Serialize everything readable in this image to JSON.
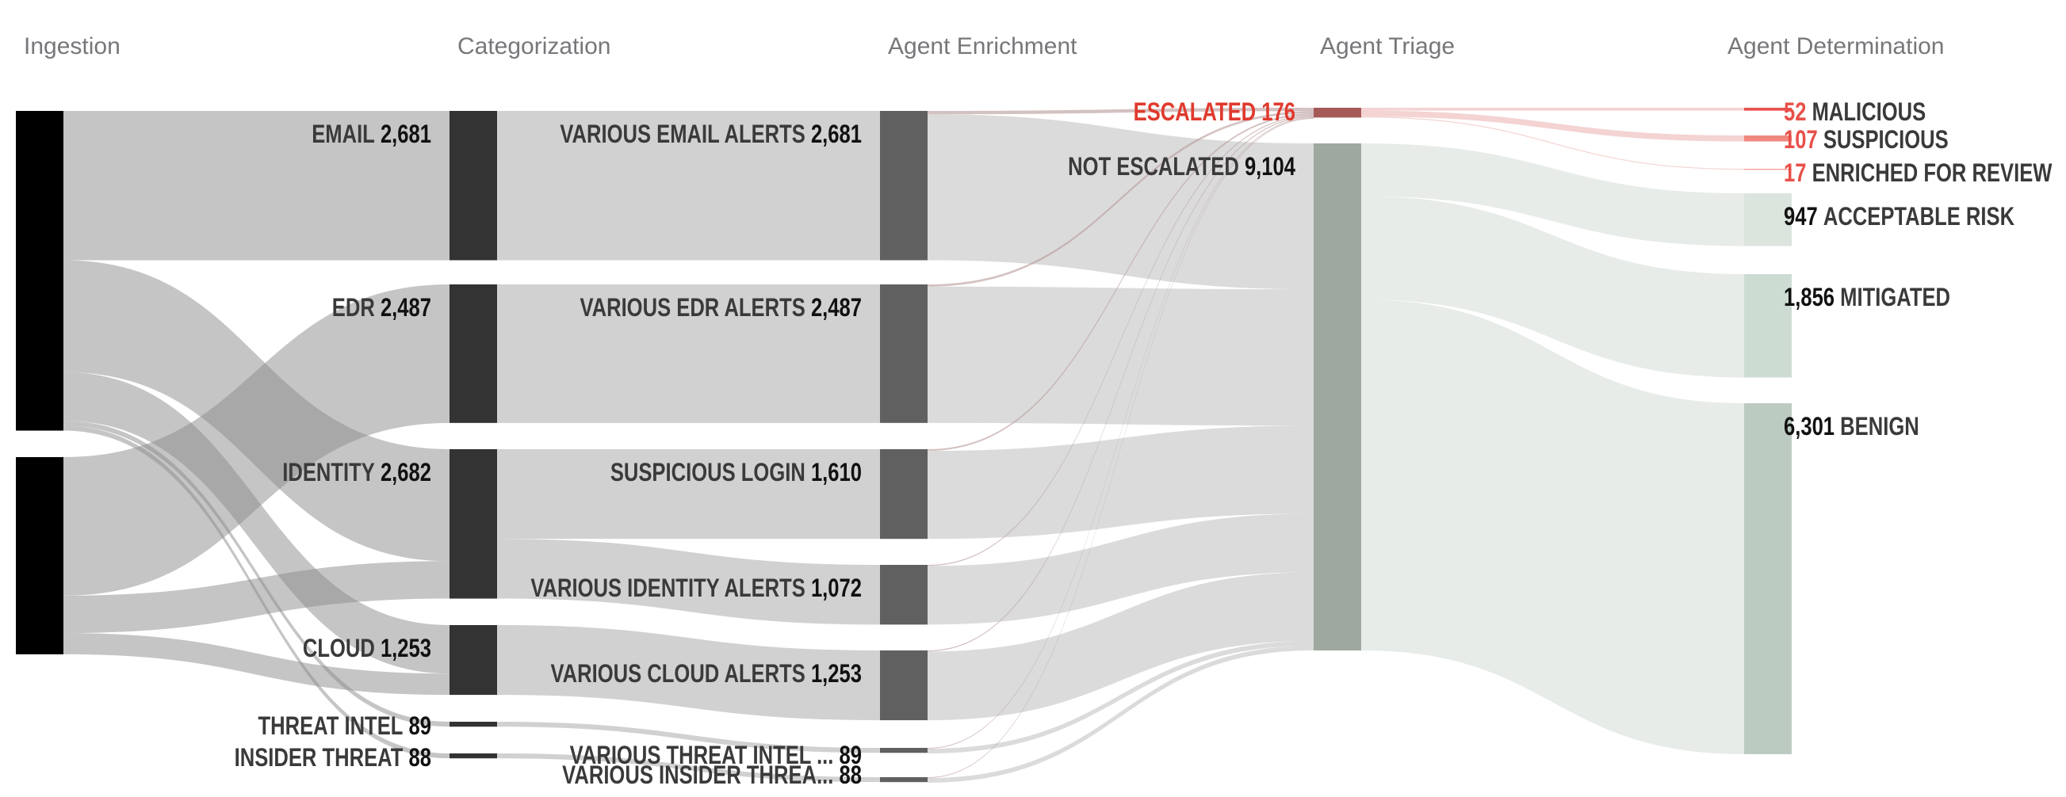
{
  "chart_data": {
    "type": "sankey",
    "columns": [
      "Ingestion",
      "Categorization",
      "Agent Enrichment",
      "Agent Triage",
      "Agent Determination"
    ],
    "nodes": [
      {
        "id": "src_a",
        "column": 0,
        "label": "",
        "value": 5740,
        "color": "#000000"
      },
      {
        "id": "src_b",
        "column": 0,
        "label": "",
        "value": 3540,
        "color": "#000000"
      },
      {
        "id": "email",
        "column": 1,
        "label": "EMAIL",
        "value": 2681,
        "color": "#333333"
      },
      {
        "id": "edr",
        "column": 1,
        "label": "EDR",
        "value": 2487,
        "color": "#333333"
      },
      {
        "id": "identity",
        "column": 1,
        "label": "IDENTITY",
        "value": 2682,
        "color": "#333333"
      },
      {
        "id": "cloud",
        "column": 1,
        "label": "CLOUD",
        "value": 1253,
        "color": "#333333"
      },
      {
        "id": "ti",
        "column": 1,
        "label": "THREAT INTEL",
        "value": 89,
        "color": "#333333"
      },
      {
        "id": "it",
        "column": 1,
        "label": "INSIDER THREAT",
        "value": 88,
        "color": "#333333"
      },
      {
        "id": "v_email",
        "column": 2,
        "label": "VARIOUS EMAIL ALERTS",
        "value": 2681,
        "color": "#606060"
      },
      {
        "id": "v_edr",
        "column": 2,
        "label": "VARIOUS EDR ALERTS",
        "value": 2487,
        "color": "#606060"
      },
      {
        "id": "login",
        "column": 2,
        "label": "SUSPICIOUS LOGIN",
        "value": 1610,
        "color": "#606060"
      },
      {
        "id": "v_identity",
        "column": 2,
        "label": "VARIOUS IDENTITY ALERTS",
        "value": 1072,
        "color": "#606060"
      },
      {
        "id": "v_cloud",
        "column": 2,
        "label": "VARIOUS CLOUD ALERTS",
        "value": 1253,
        "color": "#606060"
      },
      {
        "id": "v_ti",
        "column": 2,
        "label": "VARIOUS THREAT INTEL ...",
        "value": 89,
        "color": "#606060"
      },
      {
        "id": "v_it",
        "column": 2,
        "label": "VARIOUS INSIDER THREA...",
        "value": 88,
        "color": "#606060"
      },
      {
        "id": "escalated",
        "column": 3,
        "label": "ESCALATED",
        "value": 176,
        "color": "#a55a58",
        "text_color": "#e03a2e"
      },
      {
        "id": "not_escalated",
        "column": 3,
        "label": "NOT ESCALATED",
        "value": 9104,
        "color": "#9fa89f"
      },
      {
        "id": "malicious",
        "column": 4,
        "label": "MALICIOUS",
        "value": 52,
        "color": "#e8504a",
        "value_color": "#e8504a"
      },
      {
        "id": "suspicious",
        "column": 4,
        "label": "SUSPICIOUS",
        "value": 107,
        "color": "#f08880",
        "value_color": "#e8504a"
      },
      {
        "id": "enriched",
        "column": 4,
        "label": "ENRICHED FOR REVIEW",
        "value": 17,
        "color": "#f4a8a0",
        "value_color": "#e8504a"
      },
      {
        "id": "acceptable",
        "column": 4,
        "label": "ACCEPTABLE RISK",
        "value": 947,
        "color": "#dce4de"
      },
      {
        "id": "mitigated",
        "column": 4,
        "label": "MITIGATED",
        "value": 1856,
        "color": "#cddcd3"
      },
      {
        "id": "benign",
        "column": 4,
        "label": "BENIGN",
        "value": 6301,
        "color": "#bccbc2"
      }
    ],
    "links": [
      {
        "source": "src_a",
        "target": "email",
        "value": 2681
      },
      {
        "source": "src_a",
        "target": "identity",
        "value": 2010
      },
      {
        "source": "src_a",
        "target": "cloud",
        "value": 872
      },
      {
        "source": "src_a",
        "target": "ti",
        "value": 89
      },
      {
        "source": "src_a",
        "target": "it",
        "value": 88
      },
      {
        "source": "src_b",
        "target": "edr",
        "value": 2487
      },
      {
        "source": "src_b",
        "target": "identity",
        "value": 672
      },
      {
        "source": "src_b",
        "target": "cloud",
        "value": 381
      },
      {
        "source": "email",
        "target": "v_email",
        "value": 2681
      },
      {
        "source": "edr",
        "target": "v_edr",
        "value": 2487
      },
      {
        "source": "identity",
        "target": "login",
        "value": 1610
      },
      {
        "source": "identity",
        "target": "v_identity",
        "value": 1072
      },
      {
        "source": "cloud",
        "target": "v_cloud",
        "value": 1253
      },
      {
        "source": "ti",
        "target": "v_ti",
        "value": 89
      },
      {
        "source": "it",
        "target": "v_it",
        "value": 88
      },
      {
        "source": "v_email",
        "target": "escalated",
        "value": 60
      },
      {
        "source": "v_email",
        "target": "not_escalated",
        "value": 2621
      },
      {
        "source": "v_edr",
        "target": "escalated",
        "value": 40
      },
      {
        "source": "v_edr",
        "target": "not_escalated",
        "value": 2447
      },
      {
        "source": "login",
        "target": "escalated",
        "value": 30
      },
      {
        "source": "login",
        "target": "not_escalated",
        "value": 1580
      },
      {
        "source": "v_identity",
        "target": "escalated",
        "value": 20
      },
      {
        "source": "v_identity",
        "target": "not_escalated",
        "value": 1052
      },
      {
        "source": "v_cloud",
        "target": "escalated",
        "value": 20
      },
      {
        "source": "v_cloud",
        "target": "not_escalated",
        "value": 1233
      },
      {
        "source": "v_ti",
        "target": "escalated",
        "value": 3
      },
      {
        "source": "v_ti",
        "target": "not_escalated",
        "value": 86
      },
      {
        "source": "v_it",
        "target": "escalated",
        "value": 3
      },
      {
        "source": "v_it",
        "target": "not_escalated",
        "value": 85
      },
      {
        "source": "escalated",
        "target": "malicious",
        "value": 52
      },
      {
        "source": "escalated",
        "target": "suspicious",
        "value": 107
      },
      {
        "source": "escalated",
        "target": "enriched",
        "value": 17
      },
      {
        "source": "not_escalated",
        "target": "acceptable",
        "value": 947
      },
      {
        "source": "not_escalated",
        "target": "mitigated",
        "value": 1856
      },
      {
        "source": "not_escalated",
        "target": "benign",
        "value": 6301
      }
    ],
    "colors": {
      "header": "#77777b",
      "label_name": "#3a3a3a",
      "label_value": "#111111",
      "escalated_link": "#eebcbc",
      "neutral_link": "#8c8c8c",
      "triage_link": "#d3dcd6"
    }
  }
}
